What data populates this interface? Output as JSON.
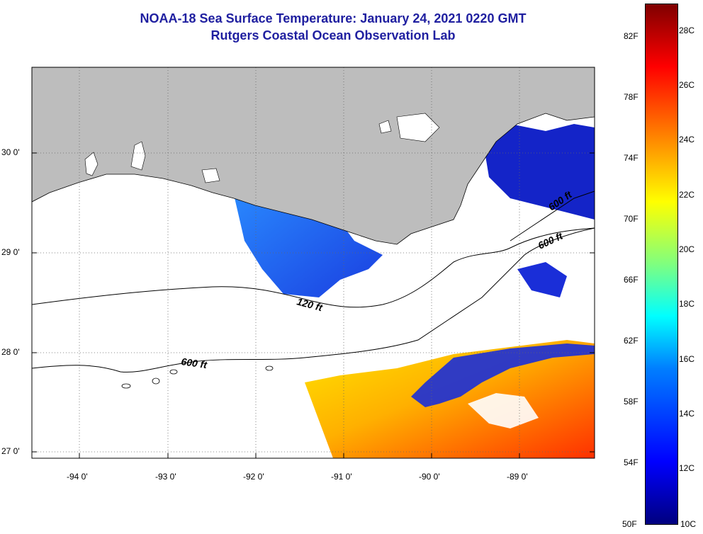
{
  "title": {
    "line1": "NOAA-18 Sea Surface Temperature:  January 24, 2021 0220 GMT",
    "line2": "Rutgers Coastal Ocean Observation Lab"
  },
  "map": {
    "lat_labels": [
      "30 0'",
      "29 0'",
      "28 0'",
      "27 0'"
    ],
    "lon_labels": [
      "-94 0'",
      "-93 0'",
      "-92 0'",
      "-91 0'",
      "-90 0'",
      "-89 0'"
    ],
    "contour_labels": [
      "600 ft",
      "120 ft",
      "600 ft",
      "600 ft"
    ],
    "land_color": "#bdbdbd"
  },
  "colorbar": {
    "fahrenheit": [
      "82F",
      "78F",
      "74F",
      "70F",
      "66F",
      "62F",
      "58F",
      "54F",
      "50F"
    ],
    "celsius": [
      "28C",
      "26C",
      "24C",
      "22C",
      "20C",
      "18C",
      "16C",
      "14C",
      "12C",
      "10C"
    ]
  }
}
